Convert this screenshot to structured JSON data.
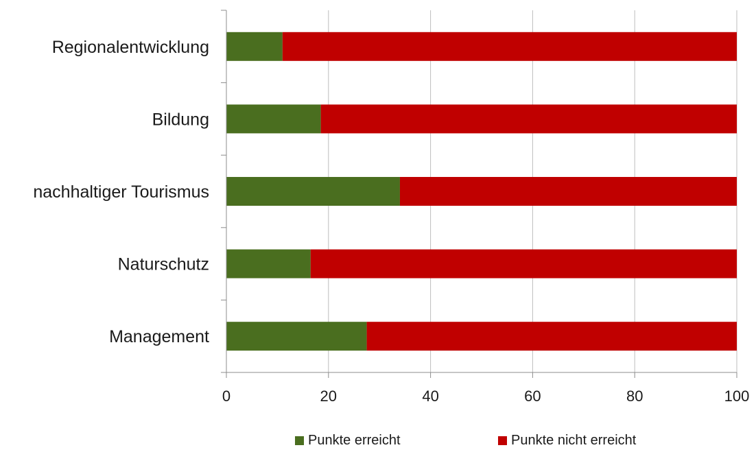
{
  "chart_data": {
    "type": "bar",
    "orientation": "horizontal",
    "stacked": true,
    "categories": [
      "Regionalentwicklung",
      "Bildung",
      "nachhaltiger Tourismus",
      "Naturschutz",
      "Management"
    ],
    "series": [
      {
        "name": "Punkte erreicht",
        "color": "#4a6e1f",
        "values": [
          11,
          18.5,
          34,
          16.5,
          27.5
        ]
      },
      {
        "name": "Punkte nicht erreicht",
        "color": "#c00000",
        "values": [
          89,
          81.5,
          66,
          83.5,
          72.5
        ]
      }
    ],
    "xlim": [
      0,
      100
    ],
    "xticks": [
      "0",
      "20",
      "40",
      "60",
      "80",
      "100"
    ],
    "grid": true,
    "legend_position": "bottom",
    "title": "",
    "xlabel": "",
    "ylabel": ""
  }
}
